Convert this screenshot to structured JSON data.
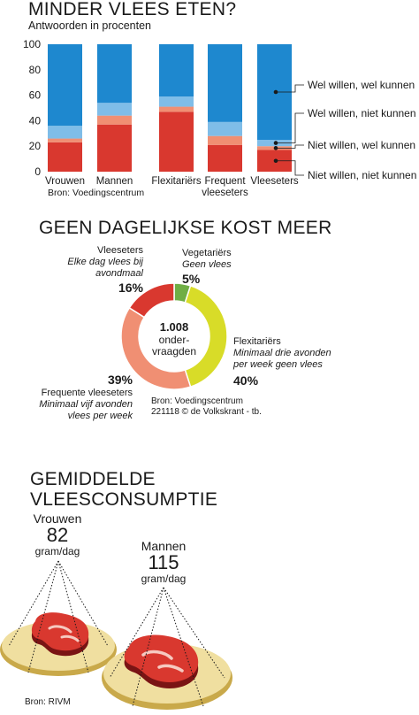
{
  "chart_data": [
    {
      "type": "bar",
      "stacked": true,
      "title": "MINDER VLEES ETEN?",
      "subtitle": "Antwoorden in procenten",
      "source": "Bron: Voedingscentrum",
      "categories": [
        "Vrouwen",
        "Mannen",
        "Flexitariërs",
        "Frequent vleeseters",
        "Vleeseters"
      ],
      "ylim": [
        0,
        100
      ],
      "yticks": [
        "0",
        "20",
        "40",
        "60",
        "80",
        "100"
      ],
      "grid": false,
      "legend_position": "right",
      "series": [
        {
          "name": "Niet willen, niet kunnen",
          "color": "#d9382f",
          "values": [
            23,
            37,
            47,
            21,
            17
          ]
        },
        {
          "name": "Niet willen, wel kunnen",
          "color": "#f08f73",
          "values": [
            3,
            7,
            4,
            7,
            3
          ]
        },
        {
          "name": "Wel willen, niet kunnen",
          "color": "#7fbde8",
          "values": [
            10,
            10,
            8,
            11,
            5
          ]
        },
        {
          "name": "Wel willen, wel kunnen",
          "color": "#1e88cf",
          "values": [
            64,
            46,
            41,
            61,
            75
          ]
        }
      ]
    },
    {
      "type": "pie",
      "title": "GEEN DAGELIJKSE KOST MEER",
      "center_value": "1.008",
      "center_label_lines": [
        "onder-",
        "vraagden"
      ],
      "source_lines": [
        "Bron: Voedingscentrum",
        "221118 © de Volkskrant - tb."
      ],
      "slices": [
        {
          "name": "Vegetariërs",
          "desc_lines": [
            "Geen vlees"
          ],
          "pct": "5%",
          "value": 5,
          "color": "#6fae45"
        },
        {
          "name": "Flexitariërs",
          "desc_lines": [
            "Minimaal drie avonden",
            "per week geen vlees"
          ],
          "pct": "40%",
          "value": 40,
          "color": "#d8dc28"
        },
        {
          "name": "Frequente vleeseters",
          "desc_lines": [
            "Minimaal vijf avonden",
            "vlees per week"
          ],
          "pct": "39%",
          "value": 39,
          "color": "#f08f73"
        },
        {
          "name": "Vleeseters",
          "desc_lines": [
            "Elke dag vlees bij",
            "avondmaal"
          ],
          "pct": "16%",
          "value": 16,
          "color": "#d9382f"
        }
      ]
    }
  ],
  "consumption": {
    "title_lines": [
      "GEMIDDELDE",
      "VLEESCONSUMPTIE"
    ],
    "source": "Bron: RIVM",
    "women": {
      "label": "Vrouwen",
      "value": "82",
      "unit": "gram/dag"
    },
    "men": {
      "label": "Mannen",
      "value": "115",
      "unit": "gram/dag"
    }
  }
}
